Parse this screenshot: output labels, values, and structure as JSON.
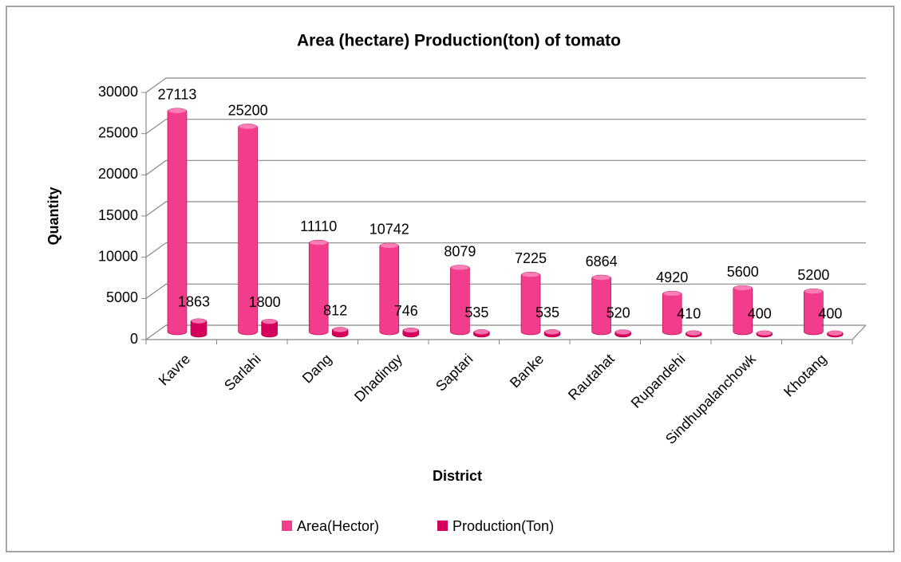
{
  "chart_data": {
    "type": "bar",
    "title": "Area (hectare) Production(ton) of tomato",
    "x_label": "District",
    "y_label": "Quantity",
    "categories": [
      "Kavre",
      "Sarlahi",
      "Dang",
      "Dhadingy",
      "Saptari",
      "Banke",
      "Rautahat",
      "Rupandehi",
      "Sindhupalanchowk",
      "Khotang"
    ],
    "series": [
      {
        "name": "Area(Hector)",
        "color": "#f23d8d",
        "values": [
          27113,
          25200,
          11110,
          10742,
          8079,
          7225,
          6864,
          4920,
          5600,
          5200
        ]
      },
      {
        "name": "Production(Ton)",
        "color": "#d4005c",
        "values": [
          1863,
          1800,
          812,
          746,
          535,
          535,
          520,
          410,
          400,
          400
        ]
      }
    ],
    "ylim": [
      0,
      30000
    ],
    "yticks": [
      0,
      5000,
      10000,
      15000,
      20000,
      25000,
      30000
    ],
    "grid": true,
    "legend": "bottom"
  }
}
